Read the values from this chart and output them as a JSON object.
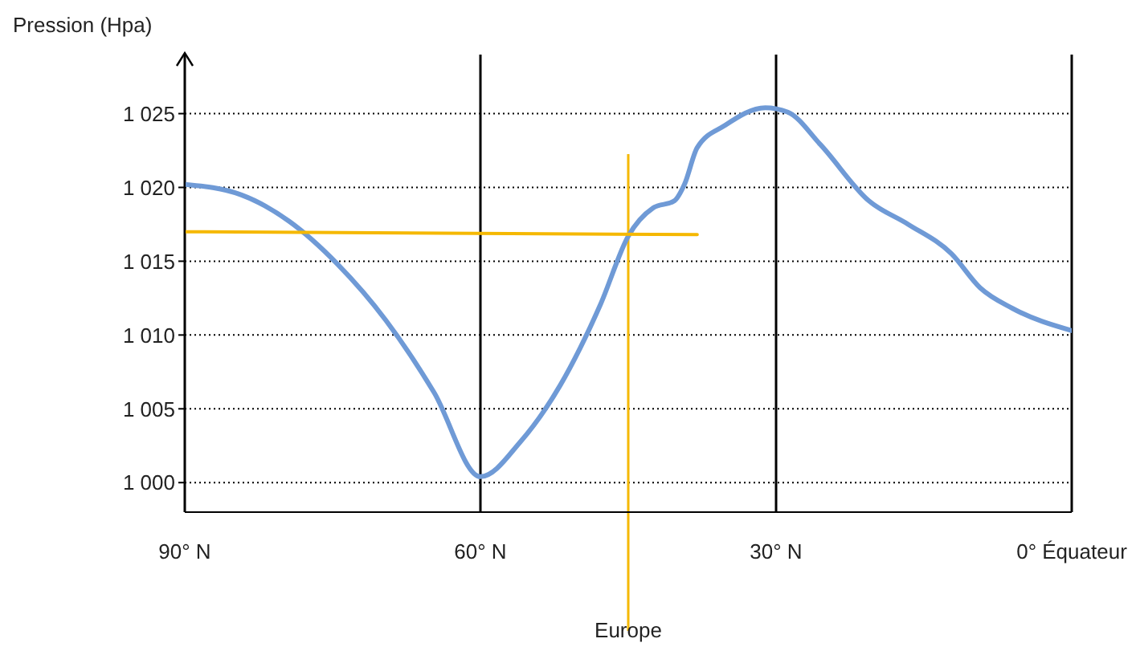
{
  "chart_data": {
    "type": "line",
    "ylabel": "Pression (Hpa)",
    "xlim": [
      90,
      0
    ],
    "xticks": [
      {
        "value": 90,
        "label": "90° N"
      },
      {
        "value": 60,
        "label": "60° N"
      },
      {
        "value": 30,
        "label": "30° N"
      },
      {
        "value": 0,
        "label": "0° Équateur"
      }
    ],
    "ylim": [
      998,
      1029
    ],
    "yticks": [
      {
        "value": 1000,
        "label": "1 000"
      },
      {
        "value": 1005,
        "label": "1 005"
      },
      {
        "value": 1010,
        "label": "1 010"
      },
      {
        "value": 1015,
        "label": "1 015"
      },
      {
        "value": 1020,
        "label": "1 020"
      },
      {
        "value": 1025,
        "label": "1 025"
      }
    ],
    "grid": true,
    "marker": "none",
    "line_style": "solid",
    "ref_lines": [
      {
        "axis": "x",
        "value": 45,
        "label": "Europe",
        "color": "#f5b800"
      }
    ],
    "series": [
      {
        "color": "#6f9ad6",
        "x": [
          90,
          84.3,
          79.4,
          74.5,
          69.6,
          64.7,
          60,
          55.9,
          51.9,
          47.8,
          45,
          42.5,
          40.3,
          39.3,
          38,
          35.2,
          31.1,
          28.8,
          25.5,
          20.6,
          16.6,
          12.2,
          9.3,
          6,
          0
        ],
        "values": [
          1020.2,
          1019.5,
          1017.7,
          1014.8,
          1011,
          1006.1,
          1000.4,
          1002.8,
          1006.6,
          1012.1,
          1016.7,
          1018.6,
          1019.1,
          1020.2,
          1022.7,
          1024.2,
          1025.4,
          1025.1,
          1022.9,
          1019.1,
          1017.5,
          1015.5,
          1013.2,
          1011.8,
          1010.3
        ]
      },
      {
        "color": "#f5b800",
        "x": [
          90,
          38
        ],
        "values": [
          1017,
          1016.8
        ]
      }
    ]
  }
}
